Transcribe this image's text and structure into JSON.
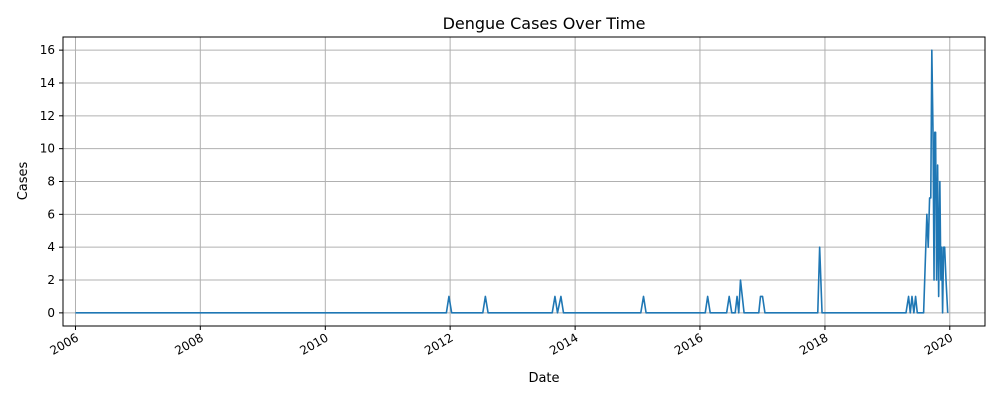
{
  "chart_data": {
    "type": "line",
    "title": "Dengue Cases Over Time",
    "xlabel": "Date",
    "ylabel": "Cases",
    "xlim": [
      "2005-10-20",
      "2020-07-25"
    ],
    "ylim": [
      -0.8,
      16.8
    ],
    "grid": true,
    "x_ticks": [
      "2006",
      "2008",
      "2010",
      "2012",
      "2014",
      "2016",
      "2018",
      "2020"
    ],
    "y_ticks": [
      0,
      2,
      4,
      6,
      8,
      10,
      12,
      14,
      16
    ],
    "series": [
      {
        "color": "#1f77b4",
        "points": [
          [
            "2006-01-01",
            0
          ],
          [
            "2011-12-10",
            0
          ],
          [
            "2011-12-25",
            1
          ],
          [
            "2012-01-10",
            0
          ],
          [
            "2012-07-10",
            0
          ],
          [
            "2012-07-25",
            1
          ],
          [
            "2012-08-10",
            0
          ],
          [
            "2013-08-20",
            0
          ],
          [
            "2013-09-05",
            1
          ],
          [
            "2013-09-20",
            0
          ],
          [
            "2013-10-10",
            1
          ],
          [
            "2013-10-25",
            0
          ],
          [
            "2015-01-20",
            0
          ],
          [
            "2015-02-05",
            1
          ],
          [
            "2015-02-20",
            0
          ],
          [
            "2016-02-01",
            0
          ],
          [
            "2016-02-15",
            1
          ],
          [
            "2016-03-01",
            0
          ],
          [
            "2016-06-05",
            0
          ],
          [
            "2016-06-20",
            1
          ],
          [
            "2016-07-05",
            0
          ],
          [
            "2016-07-25",
            0
          ],
          [
            "2016-08-05",
            1
          ],
          [
            "2016-08-15",
            0
          ],
          [
            "2016-08-25",
            2
          ],
          [
            "2016-09-15",
            0
          ],
          [
            "2016-12-10",
            0
          ],
          [
            "2016-12-20",
            1
          ],
          [
            "2017-01-01",
            1
          ],
          [
            "2017-01-15",
            0
          ],
          [
            "2017-11-20",
            0
          ],
          [
            "2017-12-01",
            4
          ],
          [
            "2017-12-15",
            0
          ],
          [
            "2019-04-20",
            0
          ],
          [
            "2019-05-05",
            1
          ],
          [
            "2019-05-15",
            0
          ],
          [
            "2019-05-25",
            1
          ],
          [
            "2019-06-05",
            0
          ],
          [
            "2019-06-15",
            1
          ],
          [
            "2019-06-25",
            0
          ],
          [
            "2019-08-01",
            0
          ],
          [
            "2019-08-20",
            6
          ],
          [
            "2019-08-28",
            4
          ],
          [
            "2019-09-05",
            7
          ],
          [
            "2019-09-12",
            7
          ],
          [
            "2019-09-18",
            16
          ],
          [
            "2019-09-25",
            11
          ],
          [
            "2019-10-01",
            2
          ],
          [
            "2019-10-05",
            11
          ],
          [
            "2019-10-10",
            11
          ],
          [
            "2019-10-16",
            2
          ],
          [
            "2019-10-22",
            9
          ],
          [
            "2019-10-28",
            1
          ],
          [
            "2019-11-04",
            8
          ],
          [
            "2019-11-10",
            2
          ],
          [
            "2019-11-15",
            4
          ],
          [
            "2019-11-20",
            0
          ],
          [
            "2019-11-26",
            4
          ],
          [
            "2019-12-02",
            4
          ],
          [
            "2019-12-10",
            2
          ],
          [
            "2019-12-20",
            0
          ]
        ]
      }
    ]
  }
}
